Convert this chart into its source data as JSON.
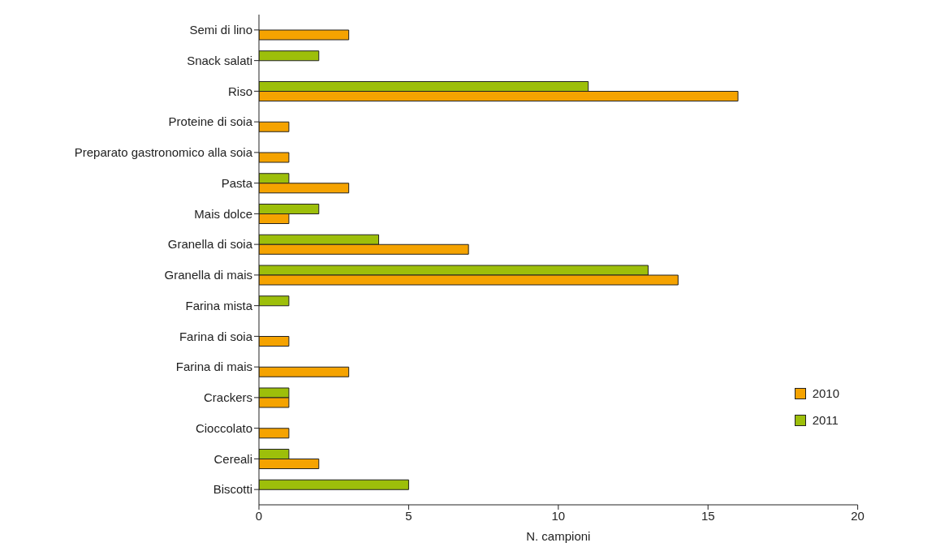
{
  "chart_data": {
    "type": "bar",
    "orientation": "horizontal",
    "xlabel": "N. campioni",
    "categories": [
      "Semi di lino",
      "Snack salati",
      "Riso",
      "Proteine di soia",
      "Preparato gastronomico alla soia",
      "Pasta",
      "Mais dolce",
      "Granella di soia",
      "Granella di mais",
      "Farina mista",
      "Farina di soia",
      "Farina di mais",
      "Crackers",
      "Cioccolato",
      "Cereali",
      "Biscotti"
    ],
    "series": [
      {
        "name": "2010",
        "color": "#f5a300",
        "values": [
          3,
          null,
          16,
          1,
          1,
          3,
          1,
          7,
          14,
          null,
          1,
          3,
          1,
          1,
          2,
          null
        ]
      },
      {
        "name": "2011",
        "color": "#9dbf0a",
        "values": [
          null,
          2,
          11,
          null,
          null,
          1,
          2,
          4,
          13,
          1,
          null,
          null,
          1,
          null,
          1,
          5
        ]
      }
    ],
    "xlim": [
      0,
      20
    ],
    "xticks": [
      0,
      5,
      10,
      15,
      20
    ],
    "legend": "right"
  }
}
